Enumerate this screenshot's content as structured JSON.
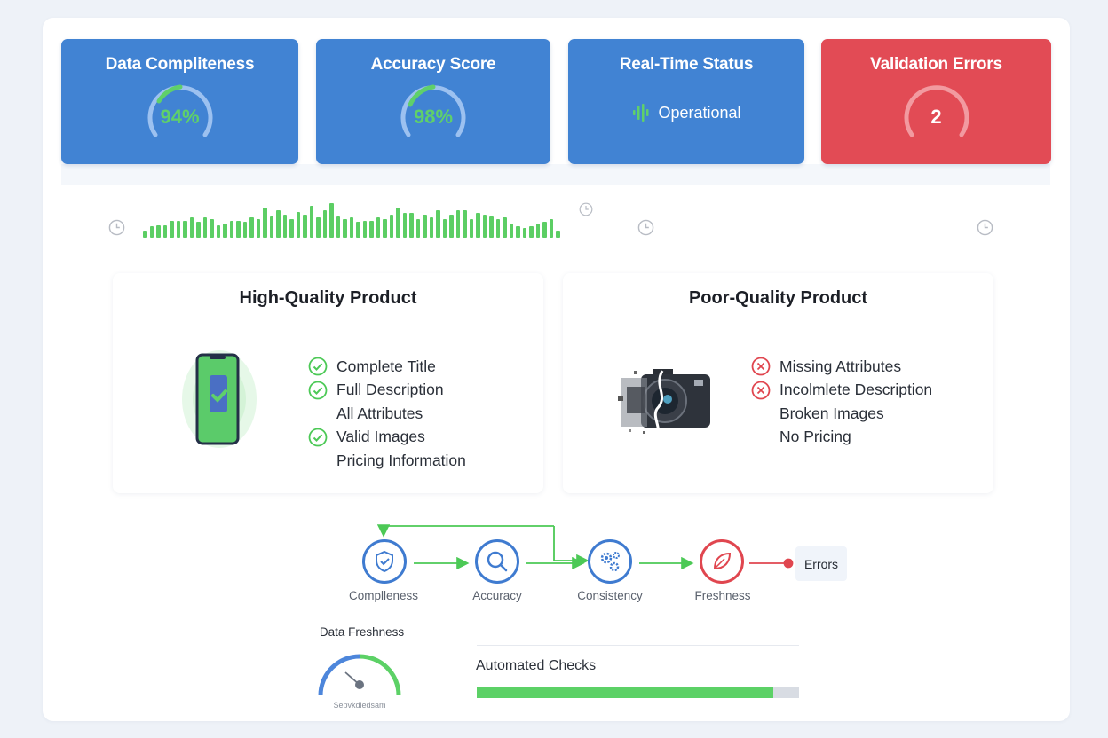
{
  "kpis": [
    {
      "title": "Data Compliteness",
      "value": "94%",
      "type": "gauge",
      "percent": 94,
      "color": "#4183d3"
    },
    {
      "title": "Accuracy Score",
      "value": "98%",
      "type": "gauge",
      "percent": 98,
      "color": "#4183d3"
    },
    {
      "title": "Real-Time Status",
      "value": "Operational",
      "type": "status",
      "icon": "signal-wave-icon",
      "color": "#4183d3"
    },
    {
      "title": "Validation Errors",
      "value": "2",
      "type": "gauge",
      "color": "#e24b55"
    }
  ],
  "activity": {
    "bar_color": "#5cce64",
    "bars": [
      3,
      6,
      7,
      7,
      10,
      10,
      10,
      12,
      9,
      12,
      11,
      7,
      8,
      10,
      10,
      9,
      12,
      11,
      19,
      13,
      17,
      14,
      11,
      16,
      14,
      20,
      12,
      17,
      22,
      13,
      11,
      12,
      9,
      10,
      10,
      12,
      11,
      14,
      19,
      15,
      15,
      11,
      14,
      12,
      17,
      11,
      14,
      17,
      17,
      11,
      15,
      14,
      13,
      11,
      12,
      8,
      6,
      5,
      6,
      8,
      9,
      11,
      3
    ],
    "clock_icons": 4
  },
  "products": {
    "high": {
      "title": "High-Quality Product",
      "icon": "phone-check-icon",
      "items": [
        {
          "label": "Complete Title",
          "check": true
        },
        {
          "label": "Full Description",
          "check": true
        },
        {
          "label": "All Attributes",
          "check": false
        },
        {
          "label": "Valid Images",
          "check": true
        },
        {
          "label": "Pricing Information",
          "check": false
        }
      ]
    },
    "poor": {
      "title": "Poor-Quality Product",
      "icon": "broken-camera-icon",
      "items": [
        {
          "label": "Missing Attributes",
          "cross": true
        },
        {
          "label": "Incolmlete Description",
          "cross": true
        },
        {
          "label": "Broken Images",
          "cross": false
        },
        {
          "label": "No Pricing",
          "cross": false
        }
      ]
    }
  },
  "pipeline": {
    "steps": [
      {
        "label": "Complleness",
        "icon": "shield-check-icon",
        "color": "#3f7bd0"
      },
      {
        "label": "Accuracy",
        "icon": "magnifier-icon",
        "color": "#3f7bd0"
      },
      {
        "label": "Consistency",
        "icon": "gears-icon",
        "color": "#3f7bd0"
      },
      {
        "label": "Freshness",
        "icon": "leaf-icon",
        "color": "#e0464f"
      }
    ],
    "end_label": "Errors",
    "arrow_color": "#4cc956",
    "error_arrow_color": "#e0464f"
  },
  "freshness": {
    "title": "Data Freshness",
    "subtitle": "Sepvkdiedsam"
  },
  "automated_checks": {
    "label": "Automated Checks",
    "percent": 92,
    "fill_color": "#5cd166"
  }
}
